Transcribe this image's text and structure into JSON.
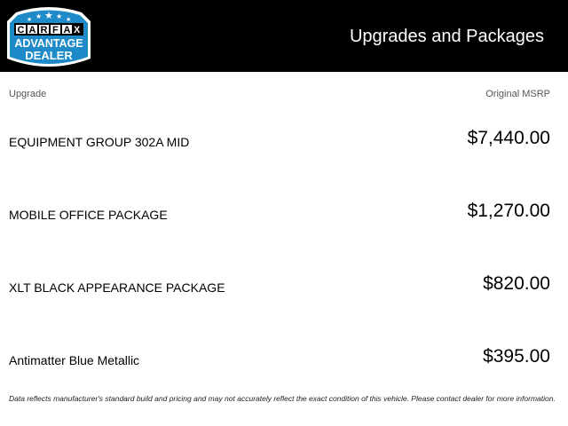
{
  "header": {
    "title": "Upgrades and Packages",
    "logo": {
      "brand": "CARFAX",
      "line1": "ADVANTAGE",
      "line2": "DEALER",
      "colors": {
        "blue": "#1e8ac8",
        "black": "#000000",
        "white": "#ffffff"
      }
    }
  },
  "columns": {
    "upgrade": "Upgrade",
    "msrp": "Original MSRP"
  },
  "items": [
    {
      "name": "EQUIPMENT GROUP 302A MID",
      "price": "$7,440.00"
    },
    {
      "name": "MOBILE OFFICE PACKAGE",
      "price": "$1,270.00"
    },
    {
      "name": "XLT BLACK APPEARANCE PACKAGE",
      "price": "$820.00"
    },
    {
      "name": "Antimatter Blue Metallic",
      "price": "$395.00"
    }
  ],
  "footer": "Data reflects manufacturer's standard build and pricing and may not accurately reflect the exact condition of this vehicle. Please contact dealer for more information."
}
